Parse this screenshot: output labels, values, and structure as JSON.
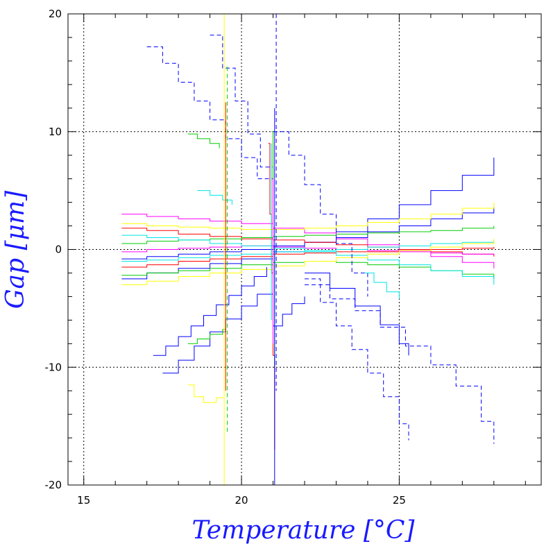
{
  "chart_data": {
    "type": "line",
    "title": "",
    "xlabel": "Temperature [°C]",
    "ylabel": "Gap [μm]",
    "xlim": [
      14.5,
      29.5
    ],
    "ylim": [
      -20,
      20
    ],
    "x_ticks": [
      15,
      20,
      25
    ],
    "y_ticks": [
      -20,
      -10,
      0,
      10,
      20
    ],
    "grid": {
      "x": [
        15,
        20,
        25
      ],
      "y": [
        -10,
        0,
        10
      ],
      "style": "dotted"
    },
    "legend": "none",
    "colors": {
      "axis_title": "#1a1aff",
      "series_palette": [
        "#0000ff",
        "#ff0000",
        "#00cc00",
        "#ff00ff",
        "#00e5e5",
        "#ffff00",
        "#000000"
      ]
    },
    "series": [
      {
        "color": "#0000ff",
        "style": "solid",
        "x": [
          16.2,
          17.0,
          18.0,
          19.0,
          20.0,
          21.0,
          22.0,
          23.0,
          24.0,
          25.0,
          26.0,
          27.0,
          28.0
        ],
        "y": [
          -2.5,
          -2.0,
          -1.6,
          -1.2,
          -0.8,
          -0.2,
          0.6,
          1.5,
          2.6,
          3.8,
          5.0,
          6.3,
          7.8
        ]
      },
      {
        "color": "#0000ff",
        "style": "solid",
        "x": [
          16.2,
          17.0,
          18.0,
          19.0,
          20.0,
          21.0,
          22.0,
          23.0,
          24.0,
          25.0,
          26.0,
          27.0,
          28.0
        ],
        "y": [
          -0.8,
          -0.6,
          -0.4,
          -0.2,
          0.0,
          0.3,
          0.6,
          1.0,
          1.5,
          2.0,
          2.6,
          3.1,
          3.6
        ]
      },
      {
        "color": "#ff0000",
        "style": "solid",
        "x": [
          16.2,
          17.0,
          18.0,
          19.0,
          20.0,
          21.0,
          22.0,
          23.0,
          24.0,
          25.0,
          26.0,
          27.0,
          28.0
        ],
        "y": [
          1.8,
          1.6,
          1.3,
          1.1,
          0.9,
          0.8,
          0.6,
          0.4,
          0.2,
          0.0,
          -0.2,
          -0.4,
          -0.6
        ]
      },
      {
        "color": "#ff0000",
        "style": "solid",
        "x": [
          16.2,
          17.0,
          18.0,
          19.0,
          20.0,
          21.0,
          22.0,
          23.0,
          24.0,
          25.0,
          26.0,
          27.0,
          28.0
        ],
        "y": [
          -1.5,
          -1.3,
          -1.0,
          -0.8,
          -0.6,
          -0.4,
          -0.3,
          -0.2,
          -0.2,
          -0.1,
          0.0,
          0.1,
          0.2
        ]
      },
      {
        "color": "#00cc00",
        "style": "solid",
        "x": [
          16.2,
          17.0,
          18.0,
          19.0,
          20.0,
          21.0,
          22.0,
          23.0,
          24.0,
          25.0,
          26.0,
          27.0,
          28.0
        ],
        "y": [
          0.5,
          0.7,
          0.8,
          0.9,
          1.0,
          1.1,
          1.2,
          1.3,
          1.4,
          1.5,
          1.6,
          1.8,
          2.0
        ]
      },
      {
        "color": "#00cc00",
        "style": "solid",
        "x": [
          16.2,
          17.0,
          18.0,
          19.0,
          20.0,
          21.0,
          22.0,
          23.0,
          24.0,
          25.0,
          26.0,
          27.0,
          28.0
        ],
        "y": [
          -2.2,
          -2.0,
          -1.8,
          -1.6,
          -1.3,
          -1.1,
          -1.0,
          -1.1,
          -1.3,
          -1.5,
          -1.8,
          -2.1,
          -2.5
        ]
      },
      {
        "color": "#ff00ff",
        "style": "solid",
        "x": [
          16.2,
          17.0,
          18.0,
          19.0,
          20.0,
          21.0,
          22.0,
          23.0,
          24.0,
          25.0,
          26.0,
          27.0,
          28.0
        ],
        "y": [
          3.0,
          2.8,
          2.6,
          2.4,
          2.2,
          1.8,
          1.4,
          0.9,
          0.4,
          -0.1,
          -0.6,
          -1.1,
          -1.6
        ]
      },
      {
        "color": "#ff00ff",
        "style": "solid",
        "x": [
          16.2,
          17.0,
          18.0,
          19.0,
          20.0,
          21.0,
          22.0,
          23.0,
          24.0,
          25.0,
          26.0,
          27.0,
          28.0
        ],
        "y": [
          -0.2,
          0.0,
          0.1,
          0.2,
          0.3,
          0.2,
          0.1,
          0.0,
          -0.1,
          -0.2,
          -0.3,
          -0.4,
          -0.5
        ]
      },
      {
        "color": "#00e5e5",
        "style": "solid",
        "x": [
          16.2,
          17.0,
          18.0,
          19.0,
          20.0,
          21.0,
          22.0,
          23.0,
          24.0,
          25.0,
          26.0,
          27.0,
          28.0
        ],
        "y": [
          1.2,
          1.0,
          0.8,
          0.5,
          0.3,
          0.1,
          -0.2,
          -0.5,
          -0.9,
          -1.3,
          -1.8,
          -2.3,
          -3.0
        ]
      },
      {
        "color": "#00e5e5",
        "style": "solid",
        "x": [
          16.2,
          17.0,
          18.0,
          19.0,
          20.0,
          21.0,
          22.0,
          23.0,
          24.0,
          25.0,
          26.0,
          27.0,
          28.0
        ],
        "y": [
          -1.0,
          -0.9,
          -0.7,
          -0.5,
          -0.4,
          -0.2,
          -0.1,
          0.0,
          0.2,
          0.3,
          0.5,
          0.6,
          0.8
        ]
      },
      {
        "color": "#ffff00",
        "style": "solid",
        "x": [
          16.2,
          17.0,
          18.0,
          19.0,
          20.0,
          21.0,
          22.0,
          23.0,
          24.0,
          25.0,
          26.0,
          27.0,
          28.0
        ],
        "y": [
          2.2,
          2.0,
          1.9,
          1.8,
          1.7,
          1.7,
          1.8,
          2.0,
          2.3,
          2.6,
          3.0,
          3.5,
          4.0
        ]
      },
      {
        "color": "#ffff00",
        "style": "solid",
        "x": [
          16.2,
          17.0,
          18.0,
          19.0,
          20.0,
          21.0,
          22.0,
          23.0,
          24.0,
          25.0,
          26.0,
          27.0,
          28.0
        ],
        "y": [
          -3.0,
          -2.7,
          -2.3,
          -2.0,
          -1.7,
          -1.4,
          -1.0,
          -0.7,
          -0.4,
          -0.1,
          0.2,
          0.5,
          0.9
        ]
      },
      {
        "color": "#0000ff",
        "style": "solid",
        "x": [
          17.2,
          17.6,
          18.0,
          18.4,
          18.8,
          19.2,
          19.6,
          20.0,
          20.4,
          20.8
        ],
        "y": [
          -9.0,
          -8.2,
          -7.4,
          -6.5,
          -5.6,
          -4.7,
          -3.9,
          -3.1,
          -2.3,
          -1.5
        ]
      },
      {
        "color": "#0000ff",
        "style": "solid",
        "x": [
          17.5,
          18.0,
          18.5,
          19.0,
          19.5,
          20.0,
          20.5,
          21.0
        ],
        "y": [
          -10.5,
          -9.4,
          -8.2,
          -7.0,
          -5.9,
          -4.8,
          -3.8,
          -2.8
        ]
      },
      {
        "color": "#0000ff",
        "style": "dashed",
        "x": [
          17.0,
          17.5,
          18.0,
          18.5,
          19.0,
          19.5,
          20.0,
          20.5,
          21.0
        ],
        "y": [
          17.2,
          15.8,
          14.2,
          12.6,
          11.0,
          9.4,
          7.8,
          6.0,
          4.0
        ]
      },
      {
        "color": "#0000ff",
        "style": "dashed",
        "x": [
          19.0,
          19.4,
          19.8,
          20.2,
          20.6,
          21.0
        ],
        "y": [
          18.2,
          15.4,
          12.6,
          9.8,
          7.0,
          4.2
        ]
      },
      {
        "color": "#0000ff",
        "style": "dashed",
        "x": [
          21.0,
          21.5,
          22.0,
          22.5,
          23.0,
          23.5,
          24.0
        ],
        "y": [
          10.0,
          8.0,
          5.5,
          3.0,
          0.5,
          -2.0,
          -4.0
        ]
      },
      {
        "color": "#0000ff",
        "style": "dashed",
        "x": [
          22.0,
          22.8,
          23.6,
          24.4,
          25.2,
          26.0,
          26.8,
          27.6,
          28.0
        ],
        "y": [
          -3.0,
          -4.2,
          -5.2,
          -6.6,
          -8.2,
          -9.8,
          -11.6,
          -14.6,
          -16.5
        ]
      },
      {
        "color": "#0000ff",
        "style": "dashed",
        "x": [
          22.0,
          22.5,
          23.0,
          23.5,
          24.0,
          24.5,
          25.0,
          25.3
        ],
        "y": [
          -2.5,
          -4.5,
          -6.5,
          -8.5,
          -10.5,
          -12.5,
          -14.8,
          -16.2
        ]
      },
      {
        "color": "#0000ff",
        "style": "solid",
        "x": [
          22.0,
          22.8,
          23.6,
          24.4,
          25.0,
          25.3
        ],
        "y": [
          -2.0,
          -3.3,
          -4.8,
          -6.4,
          -8.0,
          -9.0
        ]
      },
      {
        "color": "#0000ff",
        "style": "solid",
        "x": [
          21.0,
          21.3,
          21.6,
          22.0
        ],
        "y": [
          -6.5,
          -5.5,
          -4.6,
          -4.0
        ]
      },
      {
        "color": "#00cc00",
        "style": "solid",
        "x": [
          18.3,
          18.6,
          19.0,
          19.4,
          19.5
        ],
        "y": [
          -8.0,
          -7.6,
          -7.2,
          -6.8,
          -6.5
        ]
      },
      {
        "color": "#ffff00",
        "style": "solid",
        "x": [
          18.3,
          18.5,
          18.8,
          19.2,
          19.4
        ],
        "y": [
          -11.5,
          -12.5,
          -13.0,
          -12.6,
          -12.5
        ]
      },
      {
        "color": "#00cc00",
        "style": "solid",
        "x": [
          18.3,
          18.6,
          19.0,
          19.3
        ],
        "y": [
          9.8,
          9.4,
          9.0,
          8.6
        ]
      },
      {
        "color": "#00e5e5",
        "style": "solid",
        "x": [
          18.6,
          19.0,
          19.4,
          19.7
        ],
        "y": [
          5.0,
          4.6,
          4.2,
          3.8
        ]
      },
      {
        "color": "#ffff00",
        "style": "solid",
        "x": [
          19.45,
          19.45
        ],
        "y": [
          20.0,
          -20.0
        ]
      },
      {
        "color": "#ff0000",
        "style": "solid",
        "x": [
          19.5,
          19.5
        ],
        "y": [
          12.5,
          -12.0
        ]
      },
      {
        "color": "#00cc00",
        "style": "dashed",
        "x": [
          19.55,
          19.55
        ],
        "y": [
          15.5,
          -15.5
        ]
      },
      {
        "color": "#ff0000",
        "style": "solid",
        "x": [
          20.85,
          20.9,
          20.95,
          21.0,
          21.05
        ],
        "y": [
          9.0,
          3.0,
          -2.0,
          -9.0,
          -17.0
        ]
      },
      {
        "color": "#00cc00",
        "style": "solid",
        "x": [
          20.95,
          21.0,
          21.05
        ],
        "y": [
          10.0,
          0.0,
          -10.0
        ]
      },
      {
        "color": "#0000ff",
        "style": "solid",
        "x": [
          21.05,
          21.05
        ],
        "y": [
          12.0,
          -20.0
        ]
      },
      {
        "color": "#0000ff",
        "style": "dashed",
        "x": [
          21.1,
          21.1
        ],
        "y": [
          20.0,
          -12.0
        ]
      },
      {
        "color": "#00e5e5",
        "style": "solid",
        "x": [
          20.95,
          20.95
        ],
        "y": [
          9.0,
          -6.0
        ]
      },
      {
        "color": "#ff00ff",
        "style": "solid",
        "x": [
          21.0,
          21.0
        ],
        "y": [
          6.0,
          -8.0
        ]
      },
      {
        "color": "#00e5e5",
        "style": "solid",
        "x": [
          23.9,
          24.2,
          24.6,
          25.0
        ],
        "y": [
          -2.0,
          -2.8,
          -3.6,
          -4.2
        ]
      }
    ]
  }
}
